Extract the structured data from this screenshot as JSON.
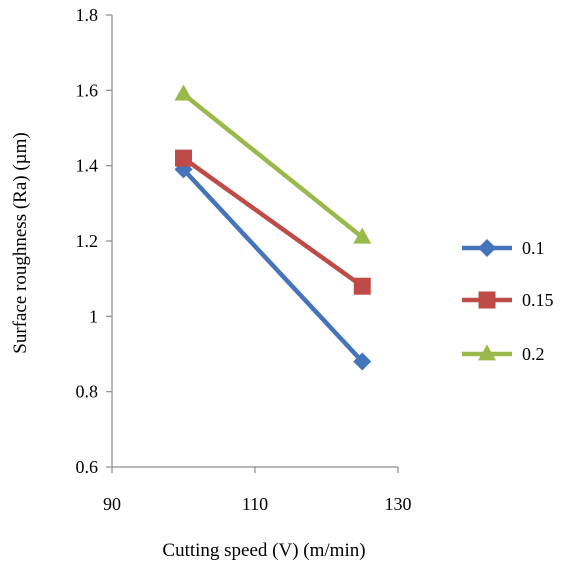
{
  "chart_data": {
    "type": "line",
    "title": "",
    "xlabel": "Cutting speed (V) (m/min)",
    "ylabel": "Surface roughness (Ra) (µm)",
    "xlim": [
      90,
      130
    ],
    "ylim": [
      0.6,
      1.8
    ],
    "x_ticks": [
      "90",
      "110",
      "130"
    ],
    "y_ticks": [
      "0.6",
      "0.8",
      "1",
      "1.2",
      "1.4",
      "1.6",
      "1.8"
    ],
    "grid": false,
    "legend_position": "right",
    "series": [
      {
        "name": "0.1",
        "color": "#4674BB",
        "marker": "diamond",
        "x": [
          100,
          125
        ],
        "y": [
          1.39,
          0.88
        ]
      },
      {
        "name": "0.15",
        "color": "#BE4B48",
        "marker": "square",
        "x": [
          100,
          125
        ],
        "y": [
          1.42,
          1.08
        ]
      },
      {
        "name": "0.2",
        "color": "#99BA4A",
        "marker": "triangle",
        "x": [
          100,
          125
        ],
        "y": [
          1.59,
          1.21
        ]
      }
    ]
  }
}
